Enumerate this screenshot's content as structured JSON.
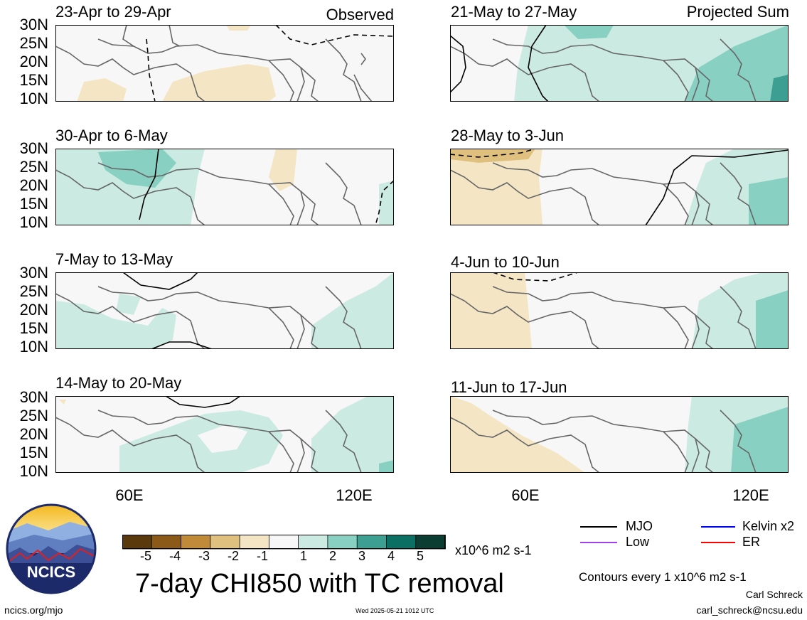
{
  "panels": [
    {
      "title": "23-Apr to 29-Apr",
      "tag": "Observed"
    },
    {
      "title": "30-Apr to 6-May",
      "tag": ""
    },
    {
      "title": "7-May to 13-May",
      "tag": ""
    },
    {
      "title": "14-May to 20-May",
      "tag": ""
    },
    {
      "title": "21-May to 27-May",
      "tag": "Projected Sum"
    },
    {
      "title": "28-May to 3-Jun",
      "tag": ""
    },
    {
      "title": "4-Jun to 10-Jun",
      "tag": ""
    },
    {
      "title": "11-Jun to 17-Jun",
      "tag": ""
    }
  ],
  "lat_labels": [
    "30N",
    "25N",
    "20N",
    "15N",
    "10N"
  ],
  "lon_labels": [
    "60E",
    "120E"
  ],
  "colorbar": {
    "ticks": [
      "-5",
      "-4",
      "-3",
      "-2",
      "-1",
      "1",
      "2",
      "3",
      "4",
      "5"
    ],
    "units": "x10^6 m2 s-1",
    "colors": [
      "#5a3a0c",
      "#8c5a18",
      "#c18a38",
      "#e0c07e",
      "#f4e6c4",
      "#f7f7f7",
      "#cbeae2",
      "#88d0c2",
      "#3d9e92",
      "#0b6f64",
      "#0b3d33"
    ]
  },
  "title": "7-day CHI850 with TC removal",
  "legend": [
    {
      "label": "MJO",
      "color": "#000000"
    },
    {
      "label": "Kelvin x2",
      "color": "#0000ff"
    },
    {
      "label": "Low",
      "color": "#a040f0"
    },
    {
      "label": "ER",
      "color": "#ff0000"
    }
  ],
  "contour_note": "Contours every 1 x10^6 m2 s-1",
  "author": "Carl Schreck",
  "email": "carl_schreck@ncsu.edu",
  "site": "ncics.org/mjo",
  "timestamp": "Wed 2025-05-21 1012 UTC",
  "logo_text": "NCICS"
}
